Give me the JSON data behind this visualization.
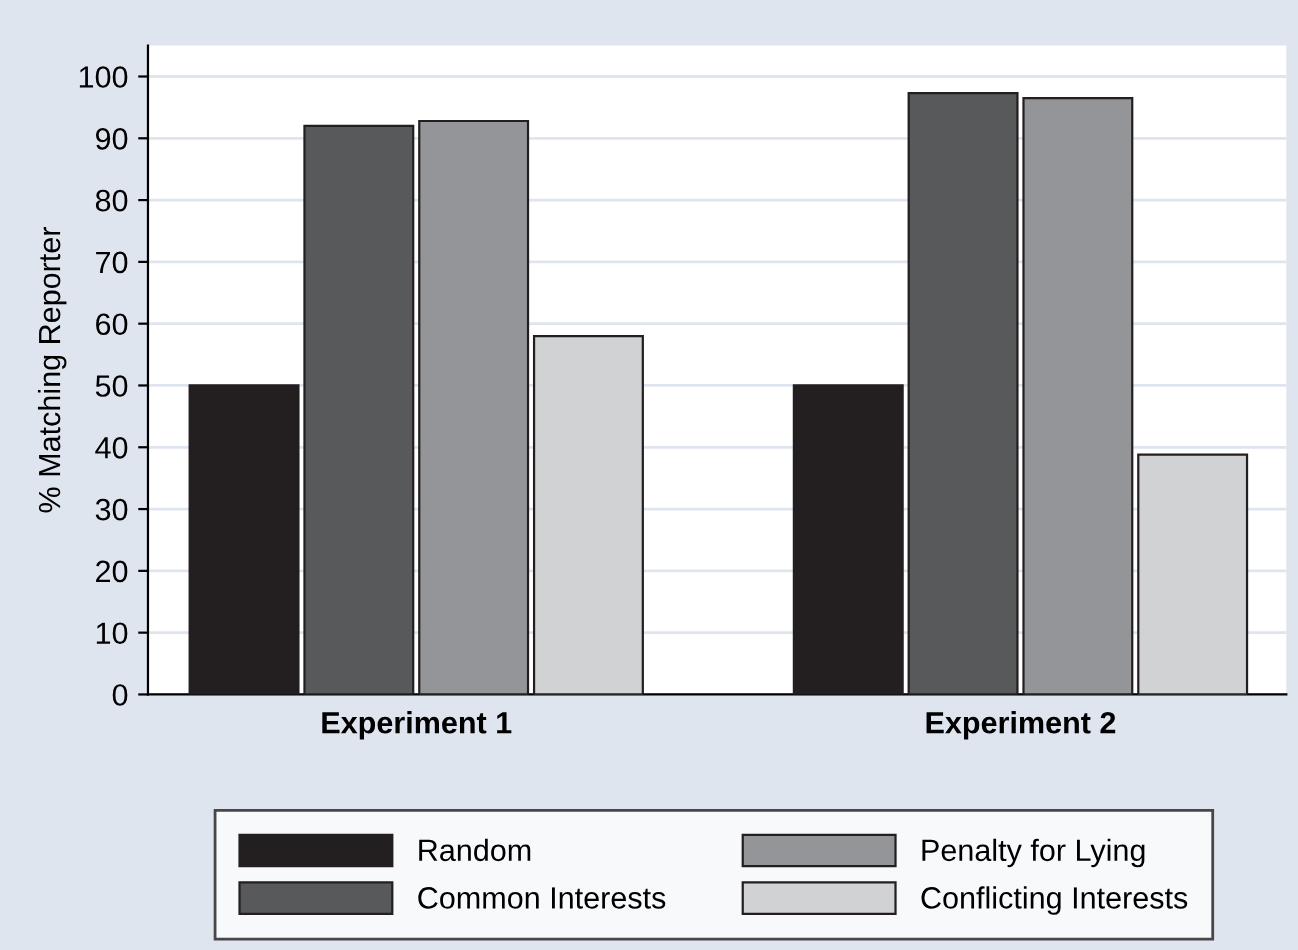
{
  "chart_data": {
    "type": "bar",
    "ylabel": "% Matching Reporter",
    "categories": [
      "Experiment 1",
      "Experiment 2"
    ],
    "series": [
      {
        "name": "Random",
        "color": "#231f20",
        "values": [
          50,
          50
        ]
      },
      {
        "name": "Common Interests",
        "color": "#58595b",
        "values": [
          92,
          97.3
        ]
      },
      {
        "name": "Penalty for Lying",
        "color": "#939598",
        "values": [
          92.8,
          96.5
        ]
      },
      {
        "name": "Conflicting Interests",
        "color": "#d1d2d4",
        "values": [
          58,
          38.8
        ]
      }
    ],
    "ylim": [
      0,
      105
    ],
    "yticks": [
      0,
      10,
      20,
      30,
      40,
      50,
      60,
      70,
      80,
      90,
      100
    ],
    "grid": "y",
    "legend": "bottom"
  }
}
